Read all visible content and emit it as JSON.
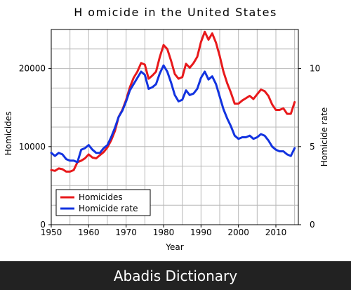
{
  "chart_data": {
    "type": "line",
    "title": "H omicide in the United States",
    "xlabel": "Year",
    "ylabel_left": "Homicides",
    "ylabel_right": "Homicide rate",
    "xlim": [
      1950,
      2016
    ],
    "ylim_left": [
      0,
      25000
    ],
    "ylim_right": [
      0,
      12.5
    ],
    "xticks": [
      1950,
      1960,
      1970,
      1980,
      1990,
      2000,
      2010
    ],
    "yticks_left": [
      0,
      10000,
      20000
    ],
    "yticks_right": [
      0,
      5,
      10
    ],
    "grid": true,
    "legend_position": "bottom-left",
    "series": [
      {
        "name": "Homicides",
        "axis": "left",
        "color": "#e8191b",
        "x": [
          1950,
          1951,
          1952,
          1953,
          1954,
          1955,
          1956,
          1957,
          1958,
          1959,
          1960,
          1961,
          1962,
          1963,
          1964,
          1965,
          1966,
          1967,
          1968,
          1969,
          1970,
          1971,
          1972,
          1973,
          1974,
          1975,
          1976,
          1977,
          1978,
          1979,
          1980,
          1981,
          1982,
          1983,
          1984,
          1985,
          1986,
          1987,
          1988,
          1989,
          1990,
          1991,
          1992,
          1993,
          1994,
          1995,
          1996,
          1997,
          1998,
          1999,
          2000,
          2001,
          2002,
          2003,
          2004,
          2005,
          2006,
          2007,
          2008,
          2009,
          2010,
          2011,
          2012,
          2013,
          2014,
          2015
        ],
        "values": [
          7000,
          6900,
          7200,
          7100,
          6800,
          6800,
          7000,
          8000,
          8200,
          8500,
          9000,
          8600,
          8500,
          8900,
          9300,
          9900,
          10800,
          12000,
          13800,
          14700,
          16000,
          17600,
          18800,
          19600,
          20700,
          20500,
          18700,
          19100,
          19600,
          21500,
          23000,
          22500,
          21000,
          19300,
          18700,
          18900,
          20600,
          20100,
          20700,
          21500,
          23400,
          24700,
          23700,
          24500,
          23300,
          21600,
          19600,
          18100,
          16900,
          15500,
          15500,
          15900,
          16200,
          16500,
          16100,
          16700,
          17300,
          17100,
          16500,
          15400,
          14700,
          14700,
          14900,
          14200,
          14200,
          15700
        ]
      },
      {
        "name": "Homicide rate",
        "axis": "right",
        "color": "#1233e0",
        "x": [
          1950,
          1951,
          1952,
          1953,
          1954,
          1955,
          1956,
          1957,
          1958,
          1959,
          1960,
          1961,
          1962,
          1963,
          1964,
          1965,
          1966,
          1967,
          1968,
          1969,
          1970,
          1971,
          1972,
          1973,
          1974,
          1975,
          1976,
          1977,
          1978,
          1979,
          1980,
          1981,
          1982,
          1983,
          1984,
          1985,
          1986,
          1987,
          1988,
          1989,
          1990,
          1991,
          1992,
          1993,
          1994,
          1995,
          1996,
          1997,
          1998,
          1999,
          2000,
          2001,
          2002,
          2003,
          2004,
          2005,
          2006,
          2007,
          2008,
          2009,
          2010,
          2011,
          2012,
          2013,
          2014,
          2015
        ],
        "values": [
          4.6,
          4.4,
          4.6,
          4.5,
          4.2,
          4.1,
          4.1,
          4.0,
          4.8,
          4.9,
          5.1,
          4.8,
          4.6,
          4.6,
          4.9,
          5.1,
          5.6,
          6.2,
          6.9,
          7.3,
          7.9,
          8.6,
          9.0,
          9.4,
          9.8,
          9.6,
          8.7,
          8.8,
          9.0,
          9.7,
          10.2,
          9.8,
          9.1,
          8.3,
          7.9,
          8.0,
          8.6,
          8.3,
          8.4,
          8.7,
          9.4,
          9.8,
          9.3,
          9.5,
          9.0,
          8.2,
          7.4,
          6.8,
          6.3,
          5.7,
          5.5,
          5.6,
          5.6,
          5.7,
          5.5,
          5.6,
          5.8,
          5.7,
          5.4,
          5.0,
          4.8,
          4.7,
          4.7,
          4.5,
          4.4,
          4.9
        ]
      }
    ]
  },
  "footer": {
    "text": "Abadis Dictionary"
  }
}
